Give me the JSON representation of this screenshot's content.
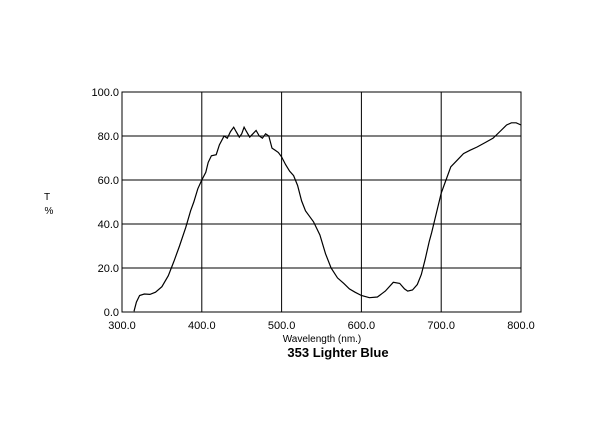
{
  "chart_data": {
    "type": "line",
    "title": "353 Lighter Blue",
    "xlabel": "Wavelength (nm.)",
    "ylabel": "T\n%",
    "xlim": [
      300,
      800
    ],
    "ylim": [
      0,
      100
    ],
    "x_ticks": [
      "300.0",
      "400.0",
      "500.0",
      "600.0",
      "700.0",
      "800.0"
    ],
    "y_ticks": [
      "0.0",
      "20.0",
      "40.0",
      "60.0",
      "80.0",
      "100.0"
    ],
    "grid": true,
    "legend": "none",
    "line_color": "#000000",
    "series": [
      {
        "x": [
          315,
          318,
          322,
          328,
          335,
          342,
          350,
          358,
          365,
          372,
          380,
          386,
          390,
          395,
          400,
          405,
          408,
          412,
          418,
          422,
          428,
          432,
          436,
          440,
          443,
          447,
          450,
          453,
          456,
          460,
          464,
          468,
          472,
          476,
          480,
          484,
          488,
          492,
          496,
          500,
          505,
          510,
          515,
          520,
          525,
          530,
          535,
          540,
          548,
          555,
          562,
          570,
          578,
          585,
          592,
          600,
          610,
          620,
          630,
          640,
          648,
          654,
          658,
          664,
          670,
          675,
          680,
          685,
          688,
          692,
          696,
          700,
          706,
          712,
          720,
          728,
          736,
          745,
          755,
          765,
          775,
          782,
          788,
          794,
          800
        ],
        "y": [
          0.3,
          4.5,
          7.5,
          8.2,
          8.0,
          9.0,
          11.5,
          16.5,
          23.0,
          30.0,
          38.5,
          46.0,
          50.0,
          56.0,
          60.0,
          63.5,
          68.0,
          71.0,
          71.5,
          76.0,
          80.0,
          79.0,
          82.0,
          84.0,
          82.0,
          79.5,
          81.0,
          84.0,
          82.0,
          79.5,
          81.0,
          82.5,
          80.0,
          79.0,
          81.0,
          80.0,
          74.5,
          73.5,
          72.5,
          70.5,
          67.0,
          64.0,
          62.0,
          57.5,
          50.5,
          46.0,
          43.5,
          41.0,
          35.0,
          26.5,
          20.0,
          15.5,
          13.0,
          10.5,
          9.0,
          7.5,
          6.5,
          6.8,
          9.5,
          13.5,
          13.0,
          10.5,
          9.5,
          10.0,
          12.5,
          17.0,
          24.0,
          32.0,
          36.0,
          42.0,
          48.0,
          54.0,
          60.0,
          66.0,
          69.0,
          72.0,
          73.5,
          75.0,
          77.0,
          79.0,
          82.5,
          85.0,
          86.0,
          86.0,
          85.0
        ]
      }
    ]
  }
}
